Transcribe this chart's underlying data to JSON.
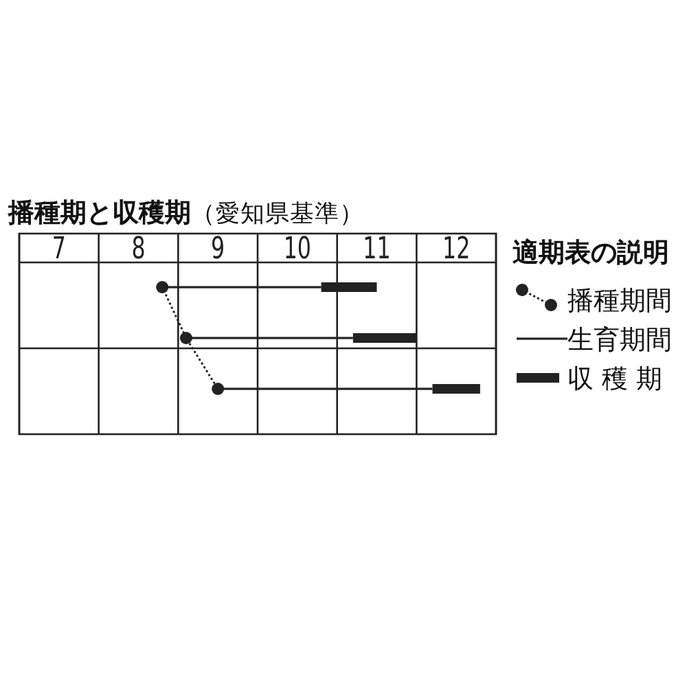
{
  "chart_data": {
    "type": "bar",
    "orientation": "horizontal",
    "title": "**播種期と収穫期**（愛知県基準）",
    "legend_title": "適期表の説明",
    "legend": "right",
    "grid": true,
    "categories": [
      null,
      null,
      null
    ],
    "xlim": [
      7,
      13
    ],
    "xticks": [
      {
        "value": 7,
        "label": null
      },
      {
        "value": 7.5,
        "label": "7"
      },
      {
        "value": 8,
        "label": null
      },
      {
        "value": 8.5,
        "label": "8"
      },
      {
        "value": 9,
        "label": null
      },
      {
        "value": 9.5,
        "label": "9"
      },
      {
        "value": 10,
        "label": null
      },
      {
        "value": 10.5,
        "label": "10"
      },
      {
        "value": 11,
        "label": null
      },
      {
        "value": 11.5,
        "label": "11"
      },
      {
        "value": 12,
        "label": null
      },
      {
        "value": 12.5,
        "label": "12"
      },
      {
        "value": 13,
        "label": null
      }
    ],
    "series": [
      {
        "name": "播種期間",
        "type": "line",
        "color": "#222222",
        "marker": "circle",
        "line_style": "dotted",
        "values": [
          8.8,
          9.1,
          9.5
        ]
      },
      {
        "name": "生育期間",
        "type": "bar",
        "color": "#222222",
        "base": [
          8.8,
          9.1,
          9.5
        ],
        "values": [
          2.0,
          2.1,
          2.7
        ]
      },
      {
        "name": "収 穫 期",
        "type": "bar",
        "color": "#222222",
        "base": [
          10.8,
          11.2,
          12.2
        ],
        "values": [
          0.7,
          0.8,
          0.6
        ]
      }
    ]
  }
}
